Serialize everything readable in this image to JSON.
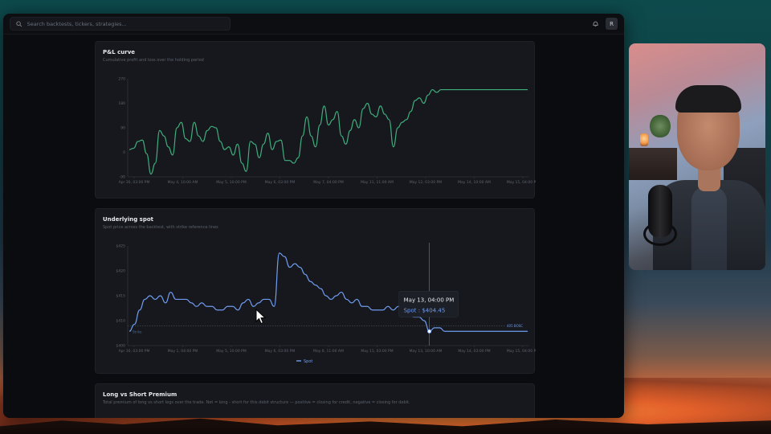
{
  "search": {
    "placeholder": "Search backtests, tickers, strategies..."
  },
  "topbar": {
    "bell_icon": "bell-icon",
    "avatar_label": "R"
  },
  "pnl": {
    "title": "P&L curve",
    "subtitle": "Cumulative profit and loss over the holding period",
    "chart_data": {
      "type": "line",
      "title": "P&L curve",
      "y_ticks": [
        "270",
        "180",
        "90",
        "0",
        "-90"
      ],
      "ylim": [
        -90,
        270
      ],
      "x_ticks": [
        "Apr 30, 03:00 PM",
        "May 4, 10:00 AM",
        "May 5, 10:00 PM",
        "May 6, 03:00 PM",
        "May 7, 04:00 PM",
        "May 11, 11:00 AM",
        "May 12, 03:00 PM",
        "May 14, 10:00 AM",
        "May 15, 04:00 PM"
      ],
      "line_color": "#3fae7c",
      "series": [
        {
          "values": [
            10,
            15,
            40,
            45,
            -5,
            -80,
            -40,
            80,
            60,
            20,
            -10,
            90,
            110,
            50,
            40,
            110,
            60,
            40,
            80,
            95,
            90,
            40,
            10,
            20,
            -10,
            30,
            -40,
            -70,
            40,
            30,
            -20,
            30,
            70,
            10,
            40,
            45,
            -30,
            -30,
            -40,
            -20,
            60,
            130,
            60,
            20,
            100,
            170,
            100,
            120,
            150,
            60,
            30,
            80,
            120,
            90,
            160,
            180,
            140,
            130,
            170,
            140,
            120,
            20,
            90,
            110,
            120,
            150,
            190,
            200,
            180,
            210,
            230,
            220,
            230,
            230,
            230,
            230,
            230,
            230,
            230,
            230,
            230,
            230,
            230,
            230,
            230,
            230,
            230,
            230,
            230,
            230,
            230,
            230,
            230
          ]
        }
      ]
    }
  },
  "spot": {
    "title": "Underlying spot",
    "subtitle": "Spot price across the backtest, with strike reference lines",
    "legend": "Spot",
    "strike_label": "Strike",
    "strike_ref_label": "405 BOSC",
    "tooltip": {
      "date": "May 13, 04:00 PM",
      "value": "Spot : $404.45"
    },
    "chart_data": {
      "type": "line",
      "title": "Underlying spot",
      "y_ticks": [
        "$425",
        "$420",
        "$415",
        "$410",
        "$400"
      ],
      "ylim": [
        400,
        428
      ],
      "x_ticks": [
        "Apr 30, 03:00 PM",
        "May 1, 04:00 PM",
        "May 5, 10:00 PM",
        "May 6, 03:00 PM",
        "May 8, 11:00 AM",
        "May 11, 03:00 PM",
        "May 13, 10:00 AM",
        "May 14, 03:00 PM",
        "May 15, 04:00 PM"
      ],
      "line_color": "#6f9cf0",
      "strike_value": 405.5,
      "series": [
        {
          "name": "Spot",
          "values": [
            404,
            406,
            410,
            413,
            414,
            413,
            414,
            412,
            415,
            413,
            413,
            413,
            412,
            411,
            412,
            411,
            411,
            410,
            410,
            411,
            411,
            410,
            412,
            413,
            411,
            412,
            413,
            413,
            411,
            426,
            425,
            422,
            423,
            422,
            420,
            418,
            417,
            416,
            414,
            413,
            414,
            415,
            413,
            412,
            413,
            411,
            411,
            410,
            410,
            410,
            411,
            410,
            411,
            409,
            409,
            408,
            408,
            407,
            404,
            405,
            405,
            404,
            404,
            404,
            404,
            404,
            404,
            404,
            404,
            404,
            404,
            404,
            404,
            404,
            404,
            404,
            404,
            404
          ]
        }
      ]
    }
  },
  "premium": {
    "title": "Long vs Short Premium",
    "subtitle": "Total premium of long vs short legs over the trade. Net = long - short for this debit structure — positive = closing for credit, negative = closing for debit."
  }
}
